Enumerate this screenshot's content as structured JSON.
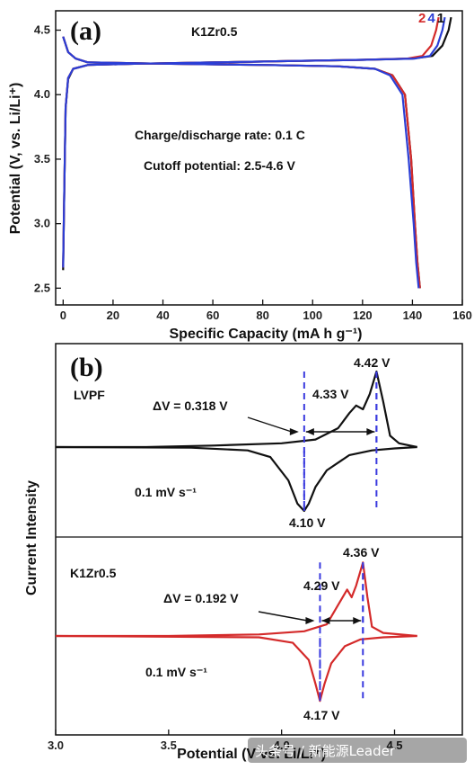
{
  "colors": {
    "black": "#111111",
    "red": "#d42a2a",
    "blue": "#2b3ed6",
    "dashed": "#3a3adf"
  },
  "watermark": "头条号 / 新能源Leader",
  "chart_data": [
    {
      "panel": "(a)",
      "type": "line",
      "sample": "K1Zr0.5",
      "xlabel": "Specific Capacity (mA h g⁻¹)",
      "ylabel": "Potential (V, vs. Li/Li⁺)",
      "xlim": [
        -3,
        160
      ],
      "ylim": [
        2.37,
        4.65
      ],
      "xticks": [
        "0",
        "20",
        "40",
        "60",
        "80",
        "100",
        "120",
        "140",
        "160"
      ],
      "yticks": [
        "2.5",
        "3.0",
        "3.5",
        "4.0",
        "4.5"
      ],
      "annotations": [
        "Charge/discharge rate: 0.1 C",
        "Cutoff potential: 2.5-4.6 V"
      ],
      "legend_labels": [
        {
          "text": "2",
          "color": "#d42a2a"
        },
        {
          "text": "4",
          "color": "#2b3ed6"
        },
        {
          "text": "1",
          "color": "#111111"
        }
      ],
      "series": [
        {
          "name": "1",
          "color": "#111111",
          "charge": [
            [
              0,
              2.64
            ],
            [
              0.5,
              3.3
            ],
            [
              1,
              3.9
            ],
            [
              2,
              4.12
            ],
            [
              4,
              4.2
            ],
            [
              10,
              4.23
            ],
            [
              30,
              4.24
            ],
            [
              60,
              4.25
            ],
            [
              90,
              4.26
            ],
            [
              120,
              4.27
            ],
            [
              140,
              4.28
            ],
            [
              148,
              4.3
            ],
            [
              152,
              4.38
            ],
            [
              154.5,
              4.5
            ],
            [
              155.5,
              4.6
            ]
          ],
          "discharge": [
            [
              0,
              4.45
            ],
            [
              2,
              4.33
            ],
            [
              5,
              4.28
            ],
            [
              10,
              4.25
            ],
            [
              40,
              4.24
            ],
            [
              80,
              4.23
            ],
            [
              110,
              4.22
            ],
            [
              125,
              4.2
            ],
            [
              132,
              4.15
            ],
            [
              137,
              4.0
            ],
            [
              139.5,
              3.5
            ],
            [
              141,
              3.0
            ],
            [
              142,
              2.7
            ],
            [
              143,
              2.5
            ]
          ]
        },
        {
          "name": "2",
          "color": "#d42a2a",
          "charge": [
            [
              0,
              2.66
            ],
            [
              0.5,
              3.3
            ],
            [
              1,
              3.9
            ],
            [
              2,
              4.13
            ],
            [
              4,
              4.2
            ],
            [
              10,
              4.23
            ],
            [
              30,
              4.24
            ],
            [
              60,
              4.25
            ],
            [
              90,
              4.26
            ],
            [
              120,
              4.27
            ],
            [
              138,
              4.28
            ],
            [
              144,
              4.3
            ],
            [
              147.5,
              4.38
            ],
            [
              149.5,
              4.5
            ],
            [
              150.5,
              4.6
            ]
          ],
          "discharge": [
            [
              0,
              4.45
            ],
            [
              2,
              4.33
            ],
            [
              5,
              4.28
            ],
            [
              10,
              4.25
            ],
            [
              40,
              4.24
            ],
            [
              80,
              4.23
            ],
            [
              110,
              4.22
            ],
            [
              125,
              4.2
            ],
            [
              132,
              4.15
            ],
            [
              137,
              4.0
            ],
            [
              139.5,
              3.5
            ],
            [
              141,
              3.0
            ],
            [
              142,
              2.7
            ],
            [
              143,
              2.5
            ]
          ]
        },
        {
          "name": "4",
          "color": "#2b3ed6",
          "charge": [
            [
              0,
              2.66
            ],
            [
              0.5,
              3.3
            ],
            [
              1,
              3.9
            ],
            [
              2,
              4.13
            ],
            [
              4,
              4.2
            ],
            [
              10,
              4.23
            ],
            [
              30,
              4.24
            ],
            [
              60,
              4.25
            ],
            [
              90,
              4.26
            ],
            [
              120,
              4.27
            ],
            [
              141,
              4.28
            ],
            [
              147,
              4.3
            ],
            [
              150,
              4.38
            ],
            [
              152,
              4.5
            ],
            [
              153,
              4.6
            ]
          ],
          "discharge": [
            [
              0,
              4.45
            ],
            [
              2,
              4.33
            ],
            [
              5,
              4.28
            ],
            [
              10,
              4.25
            ],
            [
              40,
              4.24
            ],
            [
              80,
              4.23
            ],
            [
              110,
              4.22
            ],
            [
              125,
              4.2
            ],
            [
              131,
              4.15
            ],
            [
              136,
              4.0
            ],
            [
              138.5,
              3.5
            ],
            [
              140.5,
              3.0
            ],
            [
              141.5,
              2.7
            ],
            [
              142.5,
              2.5
            ]
          ]
        }
      ]
    },
    {
      "panel": "(b)",
      "type": "line",
      "xlabel": "Potential (V vs. Li/Li⁺)",
      "ylabel": "Current Intensity",
      "xlim": [
        3.0,
        4.8
      ],
      "xticks": [
        "3.0",
        "3.5",
        "4.0",
        "4.5"
      ],
      "subplots": [
        {
          "sample": "LVPF",
          "color": "#111111",
          "scan_rate": "0.1 mV s⁻¹",
          "delta_v": "ΔV = 0.318 V",
          "peaks": [
            {
              "label": "4.42 V",
              "x": 4.42
            },
            {
              "label": "4.33 V",
              "x": 4.33
            },
            {
              "label": "4.10 V",
              "x": 4.1
            }
          ],
          "anodic": [
            [
              3.0,
              0.0
            ],
            [
              3.4,
              0.0
            ],
            [
              3.7,
              0.02
            ],
            [
              4.0,
              0.05
            ],
            [
              4.15,
              0.1
            ],
            [
              4.25,
              0.25
            ],
            [
              4.3,
              0.45
            ],
            [
              4.33,
              0.55
            ],
            [
              4.36,
              0.5
            ],
            [
              4.39,
              0.7
            ],
            [
              4.42,
              1.0
            ],
            [
              4.45,
              0.6
            ],
            [
              4.48,
              0.15
            ],
            [
              4.52,
              0.05
            ],
            [
              4.6,
              0.0
            ]
          ],
          "cathodic": [
            [
              4.6,
              0.0
            ],
            [
              4.5,
              -0.02
            ],
            [
              4.4,
              -0.05
            ],
            [
              4.3,
              -0.12
            ],
            [
              4.2,
              -0.35
            ],
            [
              4.15,
              -0.6
            ],
            [
              4.12,
              -0.85
            ],
            [
              4.1,
              -0.96
            ],
            [
              4.07,
              -0.85
            ],
            [
              4.03,
              -0.5
            ],
            [
              3.95,
              -0.15
            ],
            [
              3.85,
              -0.05
            ],
            [
              3.6,
              -0.01
            ],
            [
              3.0,
              0.0
            ]
          ]
        },
        {
          "sample": "K1Zr0.5",
          "color": "#d42a2a",
          "scan_rate": "0.1 mV s⁻¹",
          "delta_v": "ΔV = 0.192 V",
          "peaks": [
            {
              "label": "4.36 V",
              "x": 4.36
            },
            {
              "label": "4.29 V",
              "x": 4.29
            },
            {
              "label": "4.17 V",
              "x": 4.17
            }
          ],
          "anodic": [
            [
              3.0,
              0.0
            ],
            [
              3.5,
              0.0
            ],
            [
              3.9,
              0.02
            ],
            [
              4.1,
              0.06
            ],
            [
              4.2,
              0.15
            ],
            [
              4.25,
              0.4
            ],
            [
              4.29,
              0.6
            ],
            [
              4.31,
              0.5
            ],
            [
              4.33,
              0.65
            ],
            [
              4.36,
              0.95
            ],
            [
              4.38,
              0.5
            ],
            [
              4.4,
              0.12
            ],
            [
              4.45,
              0.04
            ],
            [
              4.6,
              0.0
            ]
          ],
          "cathodic": [
            [
              4.6,
              0.0
            ],
            [
              4.45,
              -0.02
            ],
            [
              4.35,
              -0.05
            ],
            [
              4.28,
              -0.15
            ],
            [
              4.22,
              -0.4
            ],
            [
              4.19,
              -0.7
            ],
            [
              4.17,
              -0.95
            ],
            [
              4.15,
              -0.7
            ],
            [
              4.12,
              -0.35
            ],
            [
              4.05,
              -0.1
            ],
            [
              3.9,
              -0.02
            ],
            [
              3.0,
              0.0
            ]
          ]
        }
      ]
    }
  ]
}
